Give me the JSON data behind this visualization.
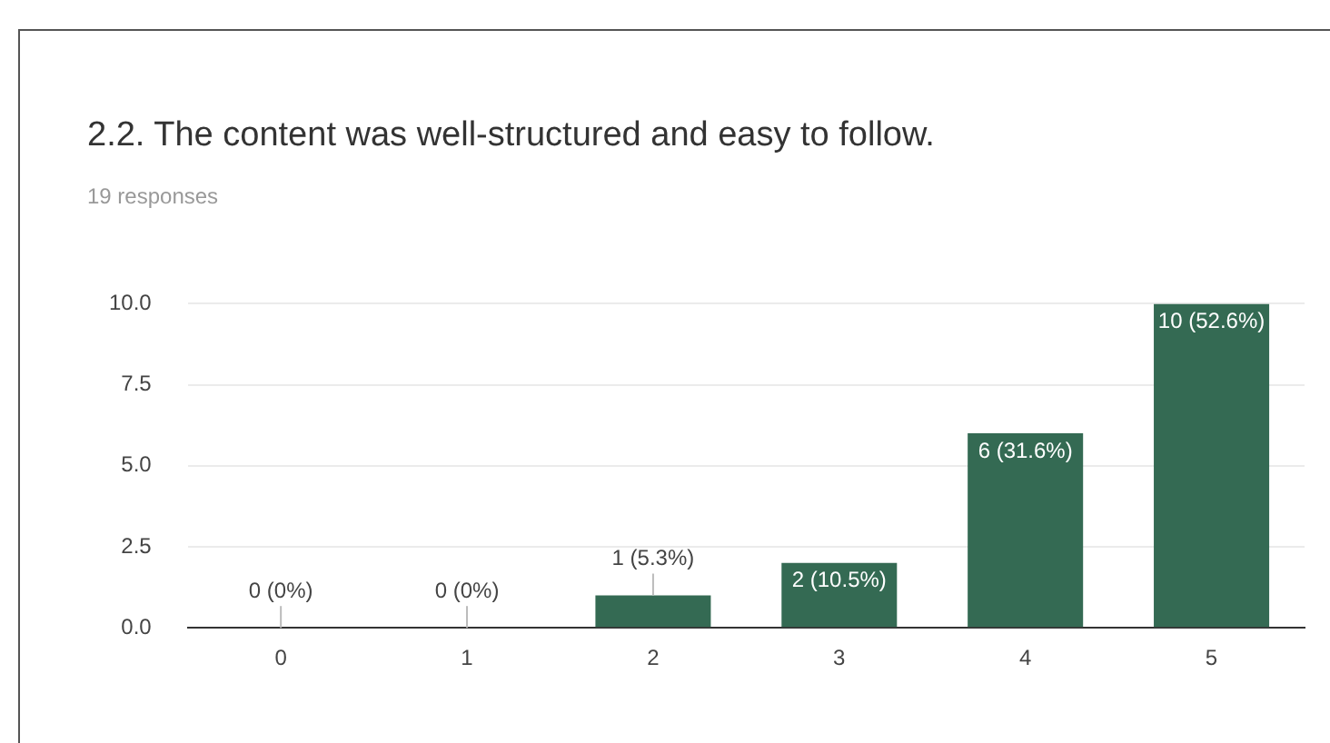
{
  "chart_data": {
    "type": "bar",
    "title": "2.2. The content was well-structured and easy to follow.",
    "subtitle": "19 responses",
    "categories": [
      "0",
      "1",
      "2",
      "3",
      "4",
      "5"
    ],
    "values": [
      0,
      0,
      1,
      2,
      6,
      10
    ],
    "value_labels": [
      "0 (0%)",
      "0 (0%)",
      "1 (5.3%)",
      "2 (10.5%)",
      "6 (31.6%)",
      "10 (52.6%)"
    ],
    "color": "#346a53",
    "ylim": [
      0,
      10
    ],
    "yticks": [
      {
        "value": 0,
        "label": "0.0"
      },
      {
        "value": 2.5,
        "label": "2.5"
      },
      {
        "value": 5,
        "label": "5.0"
      },
      {
        "value": 7.5,
        "label": "7.5"
      },
      {
        "value": 10,
        "label": "10.0"
      }
    ],
    "grid": "y",
    "legend": false
  }
}
